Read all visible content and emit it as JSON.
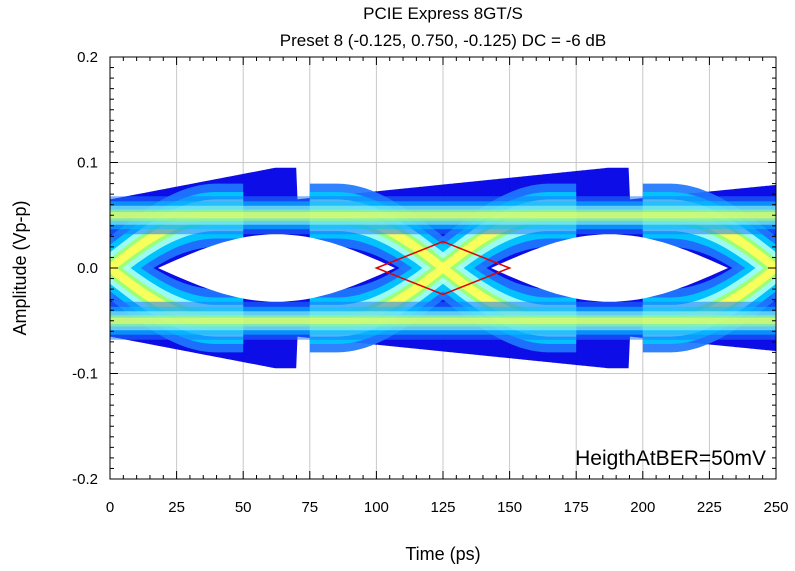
{
  "chart_data": {
    "type": "eye_diagram",
    "title": "PCIE Express 8GT/S",
    "subtitle": "Preset 8 (-0.125, 0.750, -0.125) DC = -6 dB",
    "xlabel": "Time (ps)",
    "ylabel": "Amplitude (Vp-p)",
    "xlim": [
      0,
      250
    ],
    "ylim": [
      -0.2,
      0.2
    ],
    "x_ticks": [
      0,
      25,
      50,
      75,
      100,
      125,
      150,
      175,
      200,
      225,
      250
    ],
    "x_tick_labels": [
      "0",
      "25",
      "50",
      "75",
      "100",
      "125",
      "150",
      "175",
      "200",
      "225",
      "250"
    ],
    "y_ticks": [
      -0.2,
      -0.1,
      0.0,
      0.1,
      0.2
    ],
    "y_tick_labels": [
      "-0.2",
      "-0.1",
      "0.0",
      "0.1",
      "0.2"
    ],
    "grid": true,
    "unit_interval_ps": 125,
    "eye_crossings_ps": [
      0,
      125,
      250
    ],
    "transition_edges_ps": [
      70,
      195
    ],
    "signal_levels_v": {
      "high_outer": 0.095,
      "high_deemph_outer": 0.07,
      "high_core": 0.05,
      "low_core": -0.05,
      "low_deemph_outer": -0.07,
      "low_outer": -0.095
    },
    "density_colors": [
      "#0000e6",
      "#1e78ff",
      "#00c8ff",
      "#a8fff0",
      "#9cff6e",
      "#ffff5a"
    ],
    "mask": {
      "points": [
        [
          100,
          0.0
        ],
        [
          125,
          0.025
        ],
        [
          150,
          0.0
        ],
        [
          125,
          -0.025
        ]
      ],
      "color": "#e00000"
    },
    "annotation": "HeigthAtBER=50mV"
  }
}
